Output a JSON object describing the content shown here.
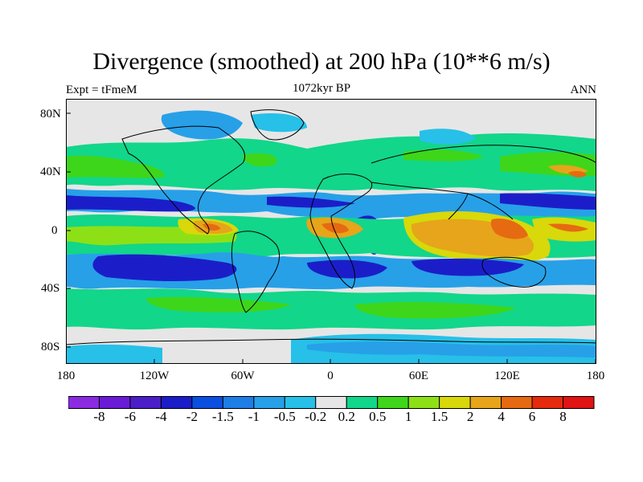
{
  "title": "Divergence (smoothed) at 200 hPa (10**6 m/s)",
  "subtitle_left": "Expt = tFmeM",
  "subtitle_center": "1072kyr BP",
  "subtitle_right": "ANN",
  "y_ticks": [
    "80N",
    "40N",
    "0",
    "40S",
    "80S"
  ],
  "x_ticks": [
    "180",
    "120W",
    "60W",
    "0",
    "60E",
    "120E",
    "180"
  ],
  "colorbar": {
    "labels": [
      "-8",
      "-6",
      "-4",
      "-2",
      "-1.5",
      "-1",
      "-0.5",
      "-0.2",
      "0.2",
      "0.5",
      "1",
      "1.5",
      "2",
      "4",
      "6",
      "8"
    ],
    "colors": [
      "#8a2be2",
      "#6a1bd6",
      "#4b1fc8",
      "#1b1ec8",
      "#0b4fe0",
      "#1f7de6",
      "#27a0e8",
      "#27c0e8",
      "#e6e6e6",
      "#12d68a",
      "#3ed61a",
      "#8ee016",
      "#d8d80a",
      "#e6a51a",
      "#e66a12",
      "#e62a0e",
      "#e01414"
    ]
  },
  "map_colors": {
    "neutral": "#e6e6e6",
    "neg1": "#27c0e8",
    "neg2": "#27a0e8",
    "neg3": "#1f7de6",
    "neg4": "#1b1ec8",
    "pos1": "#12d68a",
    "pos2": "#3ed61a",
    "pos3": "#8ee016",
    "pos4": "#d8d80a",
    "pos5": "#e6a51a",
    "pos6": "#e66a12"
  }
}
